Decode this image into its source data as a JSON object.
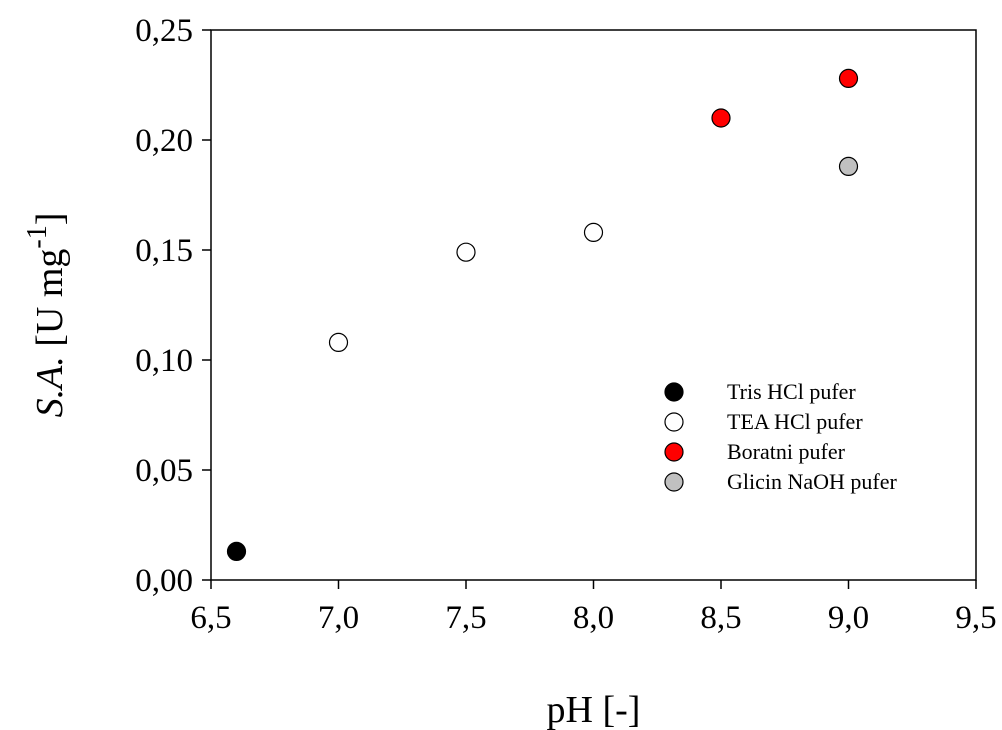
{
  "chart_data": {
    "type": "scatter",
    "title": "",
    "xlabel": "pH [-]",
    "ylabel": {
      "italic": "S.A.",
      "main": " [U mg",
      "superscript": "-1",
      "close": "]"
    },
    "xlim": [
      6.5,
      9.5
    ],
    "ylim": [
      0.0,
      0.25
    ],
    "x_ticks": [
      {
        "value": 6.5,
        "label": "6,5"
      },
      {
        "value": 7.0,
        "label": "7,0"
      },
      {
        "value": 7.5,
        "label": "7,5"
      },
      {
        "value": 8.0,
        "label": "8,0"
      },
      {
        "value": 8.5,
        "label": "8,5"
      },
      {
        "value": 9.0,
        "label": "9,0"
      },
      {
        "value": 9.5,
        "label": "9,5"
      }
    ],
    "y_ticks": [
      {
        "value": 0.0,
        "label": "0,00"
      },
      {
        "value": 0.05,
        "label": "0,05"
      },
      {
        "value": 0.1,
        "label": "0,10"
      },
      {
        "value": 0.15,
        "label": "0,15"
      },
      {
        "value": 0.2,
        "label": "0,20"
      },
      {
        "value": 0.25,
        "label": "0,25"
      }
    ],
    "grid": false,
    "legend_position": "right",
    "series": [
      {
        "name": "Tris HCl pufer",
        "fill": "#000000",
        "points": [
          {
            "x": 6.6,
            "y": 0.013
          }
        ]
      },
      {
        "name": "TEA HCl pufer",
        "fill": "#ffffff",
        "points": [
          {
            "x": 7.0,
            "y": 0.108
          },
          {
            "x": 7.5,
            "y": 0.149
          },
          {
            "x": 8.0,
            "y": 0.158
          }
        ]
      },
      {
        "name": "Boratni pufer",
        "fill": "#ff0000",
        "points": [
          {
            "x": 8.5,
            "y": 0.21
          },
          {
            "x": 9.0,
            "y": 0.228
          }
        ]
      },
      {
        "name": "Glicin NaOH pufer",
        "fill": "#c0c0c0",
        "points": [
          {
            "x": 9.0,
            "y": 0.188
          }
        ]
      }
    ]
  }
}
